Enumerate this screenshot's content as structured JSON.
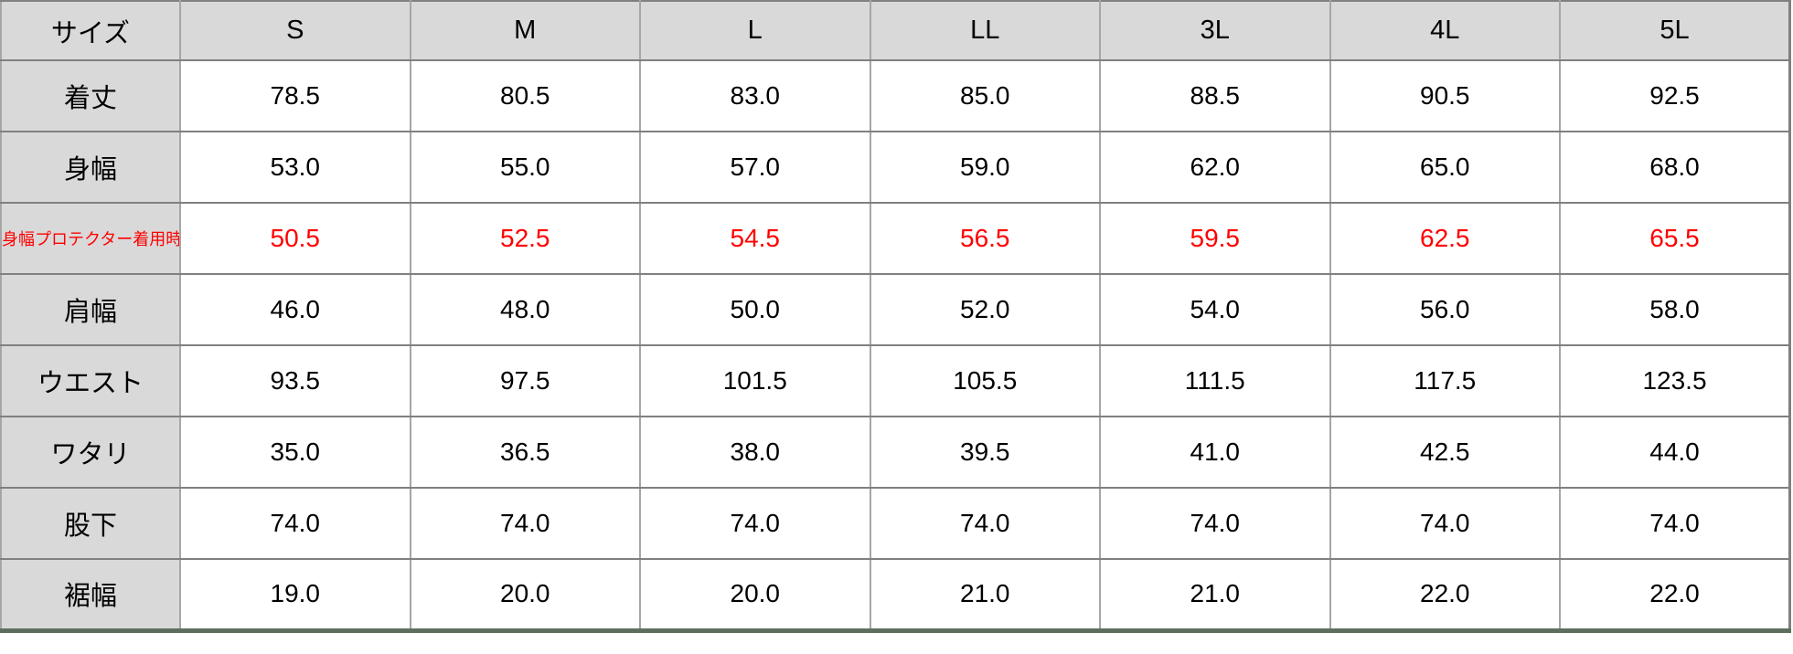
{
  "colors": {
    "header_bg": "#d9d9d9",
    "grid_line": "#808080",
    "highlight_text": "#ff0000",
    "bottom_border": "#5d6e5f",
    "body_text": "#000000"
  },
  "table": {
    "header": [
      "サイズ",
      "S",
      "M",
      "L",
      "LL",
      "3L",
      "4L",
      "5L"
    ],
    "rows": [
      {
        "label": "着丈",
        "highlight": false,
        "values": [
          "78.5",
          "80.5",
          "83.0",
          "85.0",
          "88.5",
          "90.5",
          "92.5"
        ]
      },
      {
        "label": "身幅",
        "highlight": false,
        "values": [
          "53.0",
          "55.0",
          "57.0",
          "59.0",
          "62.0",
          "65.0",
          "68.0"
        ]
      },
      {
        "label": "身幅プロテクター着用時",
        "highlight": true,
        "values": [
          "50.5",
          "52.5",
          "54.5",
          "56.5",
          "59.5",
          "62.5",
          "65.5"
        ]
      },
      {
        "label": "肩幅",
        "highlight": false,
        "values": [
          "46.0",
          "48.0",
          "50.0",
          "52.0",
          "54.0",
          "56.0",
          "58.0"
        ]
      },
      {
        "label": "ウエスト",
        "highlight": false,
        "values": [
          "93.5",
          "97.5",
          "101.5",
          "105.5",
          "111.5",
          "117.5",
          "123.5"
        ]
      },
      {
        "label": "ワタリ",
        "highlight": false,
        "values": [
          "35.0",
          "36.5",
          "38.0",
          "39.5",
          "41.0",
          "42.5",
          "44.0"
        ]
      },
      {
        "label": "股下",
        "highlight": false,
        "values": [
          "74.0",
          "74.0",
          "74.0",
          "74.0",
          "74.0",
          "74.0",
          "74.0"
        ]
      },
      {
        "label": "裾幅",
        "highlight": false,
        "values": [
          "19.0",
          "20.0",
          "20.0",
          "21.0",
          "21.0",
          "22.0",
          "22.0"
        ]
      }
    ]
  },
  "chart_data": {
    "type": "table",
    "title": "",
    "columns": [
      "サイズ",
      "S",
      "M",
      "L",
      "LL",
      "3L",
      "4L",
      "5L"
    ],
    "rows": [
      [
        "着丈",
        78.5,
        80.5,
        83.0,
        85.0,
        88.5,
        90.5,
        92.5
      ],
      [
        "身幅",
        53.0,
        55.0,
        57.0,
        59.0,
        62.0,
        65.0,
        68.0
      ],
      [
        "身幅プロテクター着用時",
        50.5,
        52.5,
        54.5,
        56.5,
        59.5,
        62.5,
        65.5
      ],
      [
        "肩幅",
        46.0,
        48.0,
        50.0,
        52.0,
        54.0,
        56.0,
        58.0
      ],
      [
        "ウエスト",
        93.5,
        97.5,
        101.5,
        105.5,
        111.5,
        117.5,
        123.5
      ],
      [
        "ワタリ",
        35.0,
        36.5,
        38.0,
        39.5,
        41.0,
        42.5,
        44.0
      ],
      [
        "股下",
        74.0,
        74.0,
        74.0,
        74.0,
        74.0,
        74.0,
        74.0
      ],
      [
        "裾幅",
        19.0,
        20.0,
        20.0,
        21.0,
        21.0,
        22.0,
        22.0
      ]
    ],
    "notes": "Row 身幅プロテクター着用時 rendered in red (#ff0000)."
  }
}
